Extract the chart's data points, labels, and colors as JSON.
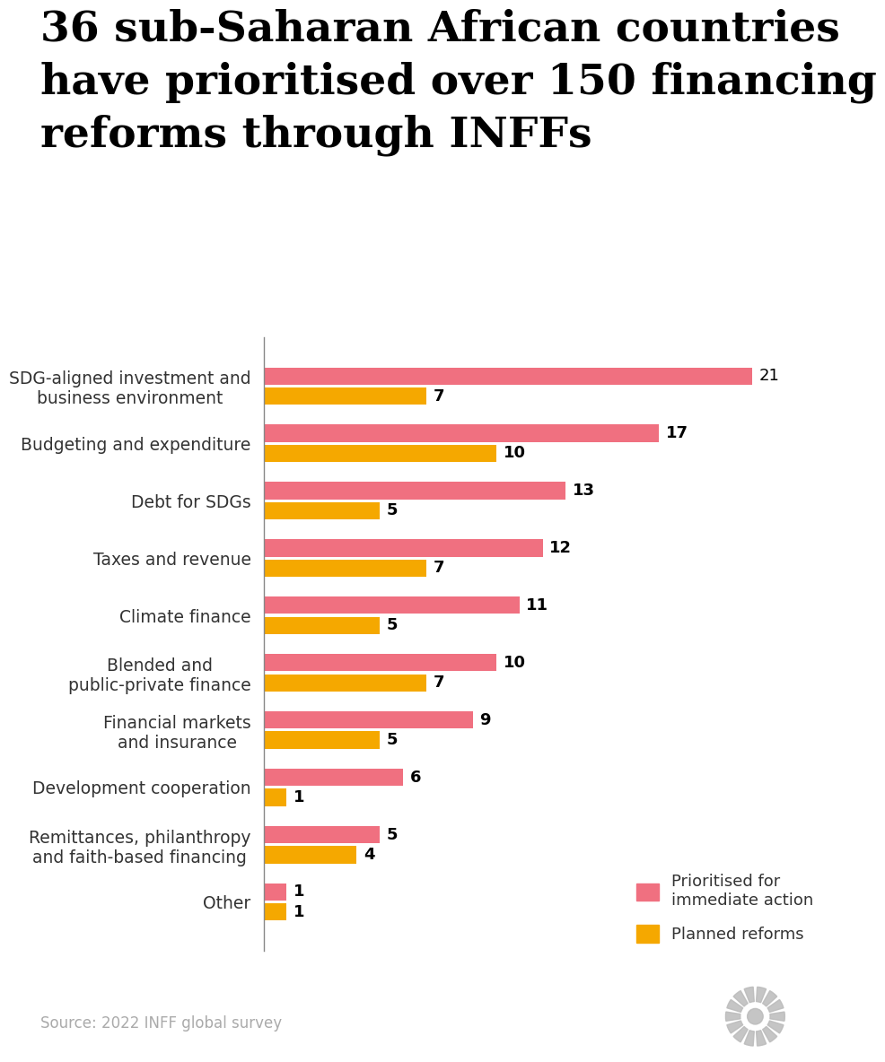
{
  "title": "36 sub-Saharan African countries\nhave prioritised over 150 financing\nreforms through INFFs",
  "categories": [
    "SDG-aligned investment and\nbusiness environment",
    "Budgeting and expenditure",
    "Debt for SDGs",
    "Taxes and revenue",
    "Climate finance",
    "Blended and\npublic-private finance",
    "Financial markets\nand insurance",
    "Development cooperation",
    "Remittances, philanthropy\nand faith-based financing",
    "Other"
  ],
  "prioritised": [
    21,
    17,
    13,
    12,
    11,
    10,
    9,
    6,
    5,
    1
  ],
  "planned": [
    7,
    10,
    5,
    7,
    5,
    7,
    5,
    1,
    4,
    1
  ],
  "bold_planned": [
    true,
    true,
    true,
    true,
    true,
    true,
    true,
    true,
    true,
    true
  ],
  "bold_prioritised": [
    false,
    true,
    true,
    true,
    true,
    true,
    true,
    true,
    true,
    true
  ],
  "color_prioritised": "#f07080",
  "color_planned": "#f5a800",
  "background_color": "#ffffff",
  "source_text": "Source: 2022 INFF global survey",
  "legend_label_1": "Prioritised for\nimmediate action",
  "legend_label_2": "Planned reforms",
  "bar_height": 0.3,
  "bar_gap": 0.05,
  "xlim": [
    0,
    24
  ],
  "title_fontsize": 34,
  "label_fontsize": 13.5,
  "value_fontsize": 13,
  "source_fontsize": 12,
  "legend_fontsize": 13
}
